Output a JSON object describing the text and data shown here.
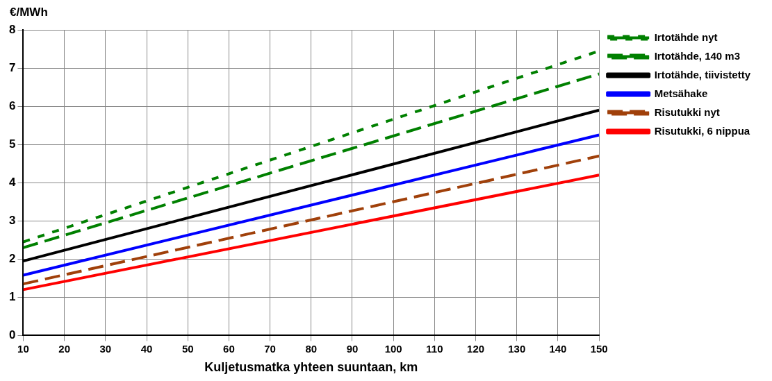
{
  "chart_data": {
    "type": "line",
    "xlabel": "Kuljetusmatka yhteen suuntaan, km",
    "ylabel": "€/MWh",
    "x": [
      10,
      150
    ],
    "xlim": [
      10,
      150
    ],
    "xticks": [
      10,
      20,
      30,
      40,
      50,
      60,
      70,
      80,
      90,
      100,
      110,
      120,
      130,
      140,
      150
    ],
    "ylim": [
      0,
      8
    ],
    "yticks": [
      0,
      1,
      2,
      3,
      4,
      5,
      6,
      7,
      8
    ],
    "grid": true,
    "legend": "right",
    "marker": "none",
    "series": [
      {
        "name": "Irtotähde nyt",
        "color": "#008000",
        "values": [
          2.45,
          7.45
        ],
        "line_style": "dotted"
      },
      {
        "name": "Irtotähde, 140 m3",
        "color": "#008000",
        "values": [
          2.3,
          6.85
        ],
        "line_style": "dashed"
      },
      {
        "name": "Irtotähde, tiivistetty",
        "color": "#000000",
        "values": [
          1.95,
          5.9
        ],
        "line_style": "solid"
      },
      {
        "name": "Metsähake",
        "color": "#0000ff",
        "values": [
          1.58,
          5.25
        ],
        "line_style": "solid"
      },
      {
        "name": "Risutukki nyt",
        "color": "#a0400a",
        "values": [
          1.35,
          4.7
        ],
        "line_style": "dashed"
      },
      {
        "name": "Risutukki, 6 nippua",
        "color": "#ff0000",
        "values": [
          1.2,
          4.2
        ],
        "line_style": "solid"
      }
    ]
  }
}
